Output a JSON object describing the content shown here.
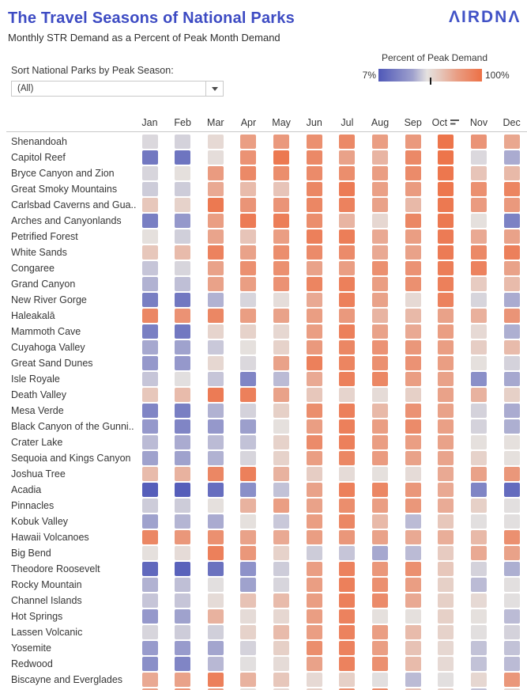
{
  "header": {
    "title": "The Travel Seasons of National Parks",
    "subtitle": "Monthly STR Demand as a Percent of Peak Month Demand",
    "logo_text": "ΛIRDNΛ"
  },
  "controls": {
    "sort_label": "Sort National Parks by Peak Season:",
    "dropdown_value": "(All)"
  },
  "legend": {
    "title": "Percent of Peak Demand",
    "min_label": "7%",
    "max_label": "100%"
  },
  "colors": {
    "title_blue": "#3d4bc3",
    "logo_blue": "#4152c6",
    "scale_min_color": "#4f58b8",
    "scale_mid_color": "#e5e2e0",
    "scale_max_color": "#ed7045",
    "text_dark": "#363636",
    "divider": "#c9c9c9"
  },
  "chart_data": {
    "type": "heatmap",
    "title": "The Travel Seasons of National Parks",
    "subtitle": "Monthly STR Demand as a Percent of Peak Month Demand",
    "unit": "percent of peak month demand",
    "scale": {
      "min": 7,
      "max": 100,
      "min_color": "#4f58b8",
      "mid_color": "#e5e2e0",
      "max_color": "#ed7045",
      "mid_value": 50
    },
    "sorted_column": "Oct",
    "months": [
      "Jan",
      "Feb",
      "Mar",
      "Apr",
      "May",
      "Jun",
      "Jul",
      "Aug",
      "Sep",
      "Oct",
      "Nov",
      "Dec"
    ],
    "parks": [
      {
        "name": "Shenandoah",
        "values": [
          47,
          45,
          54,
          80,
          82,
          86,
          89,
          80,
          82,
          98,
          84,
          76
        ]
      },
      {
        "name": "Capitol Reef",
        "values": [
          17,
          16,
          52,
          85,
          96,
          89,
          78,
          70,
          89,
          98,
          47,
          33
        ]
      },
      {
        "name": "Bryce Canyon and Zion",
        "values": [
          46,
          51,
          81,
          89,
          87,
          88,
          87,
          80,
          88,
          97,
          63,
          68
        ]
      },
      {
        "name": "Great Smoky Mountains",
        "values": [
          43,
          43,
          75,
          67,
          63,
          90,
          95,
          79,
          81,
          97,
          86,
          91
        ]
      },
      {
        "name": "Carlsbad Caverns and Gua..",
        "values": [
          62,
          57,
          96,
          84,
          84,
          90,
          92,
          78,
          68,
          96,
          81,
          82
        ]
      },
      {
        "name": "Arches and Canyonlands",
        "values": [
          19,
          27,
          80,
          95,
          94,
          87,
          70,
          55,
          90,
          96,
          51,
          20
        ]
      },
      {
        "name": "Petrified Forest",
        "values": [
          51,
          44,
          77,
          63,
          80,
          93,
          94,
          75,
          80,
          95,
          75,
          78
        ]
      },
      {
        "name": "White Sands",
        "values": [
          62,
          67,
          92,
          78,
          87,
          88,
          88,
          75,
          78,
          95,
          89,
          93
        ]
      },
      {
        "name": "Congaree",
        "values": [
          41,
          46,
          78,
          86,
          86,
          78,
          80,
          86,
          85,
          94,
          92,
          78
        ]
      },
      {
        "name": "Grand Canyon",
        "values": [
          35,
          39,
          78,
          80,
          85,
          91,
          93,
          80,
          86,
          93,
          60,
          67
        ]
      },
      {
        "name": "New River Gorge",
        "values": [
          19,
          17,
          35,
          46,
          52,
          75,
          93,
          78,
          54,
          92,
          46,
          33
        ]
      },
      {
        "name": "Haleakalā",
        "values": [
          90,
          85,
          90,
          80,
          78,
          80,
          82,
          70,
          68,
          78,
          72,
          84
        ]
      },
      {
        "name": "Mammoth Cave",
        "values": [
          19,
          17,
          56,
          57,
          55,
          80,
          93,
          78,
          75,
          80,
          54,
          34
        ]
      },
      {
        "name": "Cuyahoga Valley",
        "values": [
          32,
          30,
          42,
          51,
          57,
          82,
          90,
          85,
          83,
          80,
          59,
          67
        ]
      },
      {
        "name": "Great Sand Dunes",
        "values": [
          27,
          27,
          55,
          47,
          78,
          93,
          91,
          86,
          85,
          80,
          51,
          45
        ]
      },
      {
        "name": "Isle Royale",
        "values": [
          41,
          49,
          41,
          21,
          38,
          75,
          93,
          90,
          80,
          78,
          24,
          32
        ]
      },
      {
        "name": "Death Valley",
        "values": [
          62,
          67,
          95,
          93,
          78,
          62,
          56,
          53,
          58,
          78,
          71,
          58
        ]
      },
      {
        "name": "Mesa Verde",
        "values": [
          21,
          19,
          35,
          45,
          58,
          87,
          93,
          68,
          85,
          78,
          45,
          33
        ]
      },
      {
        "name": "Black Canyon of the Gunni..",
        "values": [
          27,
          21,
          27,
          29,
          51,
          80,
          93,
          80,
          88,
          79,
          45,
          34
        ]
      },
      {
        "name": "Crater Lake",
        "values": [
          38,
          33,
          38,
          40,
          57,
          88,
          93,
          80,
          80,
          78,
          51,
          51
        ]
      },
      {
        "name": "Sequoia and Kings Canyon",
        "values": [
          30,
          30,
          35,
          46,
          57,
          80,
          90,
          81,
          78,
          77,
          57,
          51
        ]
      },
      {
        "name": "Joshua Tree",
        "values": [
          67,
          71,
          90,
          93,
          71,
          59,
          53,
          51,
          53,
          75,
          78,
          83
        ]
      },
      {
        "name": "Acadia",
        "values": [
          9,
          9,
          14,
          24,
          40,
          78,
          93,
          90,
          83,
          75,
          21,
          13
        ]
      },
      {
        "name": "Pinnacles",
        "values": [
          43,
          43,
          51,
          71,
          80,
          78,
          87,
          80,
          83,
          74,
          58,
          49
        ]
      },
      {
        "name": "Kobuk Valley",
        "values": [
          30,
          36,
          33,
          51,
          42,
          80,
          90,
          68,
          38,
          62,
          49,
          49
        ]
      },
      {
        "name": "Hawaii Volcanoes",
        "values": [
          90,
          83,
          86,
          78,
          75,
          80,
          83,
          78,
          75,
          73,
          68,
          86
        ]
      },
      {
        "name": "Big Bend",
        "values": [
          51,
          53,
          93,
          83,
          57,
          43,
          41,
          32,
          38,
          60,
          75,
          78
        ]
      },
      {
        "name": "Theodore Roosevelt",
        "values": [
          12,
          10,
          15,
          25,
          43,
          80,
          92,
          83,
          86,
          62,
          45,
          34
        ]
      },
      {
        "name": "Rocky Mountain",
        "values": [
          35,
          39,
          49,
          30,
          46,
          80,
          93,
          86,
          80,
          58,
          38,
          49
        ]
      },
      {
        "name": "Channel Islands",
        "values": [
          41,
          41,
          53,
          64,
          67,
          80,
          93,
          88,
          75,
          58,
          54,
          49
        ]
      },
      {
        "name": "Hot Springs",
        "values": [
          27,
          30,
          71,
          53,
          55,
          80,
          92,
          51,
          51,
          58,
          51,
          38
        ]
      },
      {
        "name": "Lassen Volcanic",
        "values": [
          46,
          43,
          44,
          57,
          67,
          80,
          92,
          80,
          67,
          57,
          49,
          45
        ]
      },
      {
        "name": "Yosemite",
        "values": [
          28,
          28,
          31,
          45,
          58,
          87,
          92,
          80,
          64,
          55,
          40,
          40
        ]
      },
      {
        "name": "Redwood",
        "values": [
          24,
          21,
          37,
          49,
          53,
          78,
          92,
          86,
          67,
          54,
          40,
          38
        ]
      },
      {
        "name": "Biscayne and Everglades",
        "values": [
          75,
          78,
          93,
          71,
          62,
          54,
          58,
          49,
          38,
          49,
          55,
          83
        ]
      },
      {
        "name": "",
        "values": [
          78,
          83,
          78,
          51,
          54,
          58,
          86,
          88,
          64,
          57,
          40,
          55
        ]
      }
    ],
    "legend_position": "top-right",
    "grid": false
  }
}
